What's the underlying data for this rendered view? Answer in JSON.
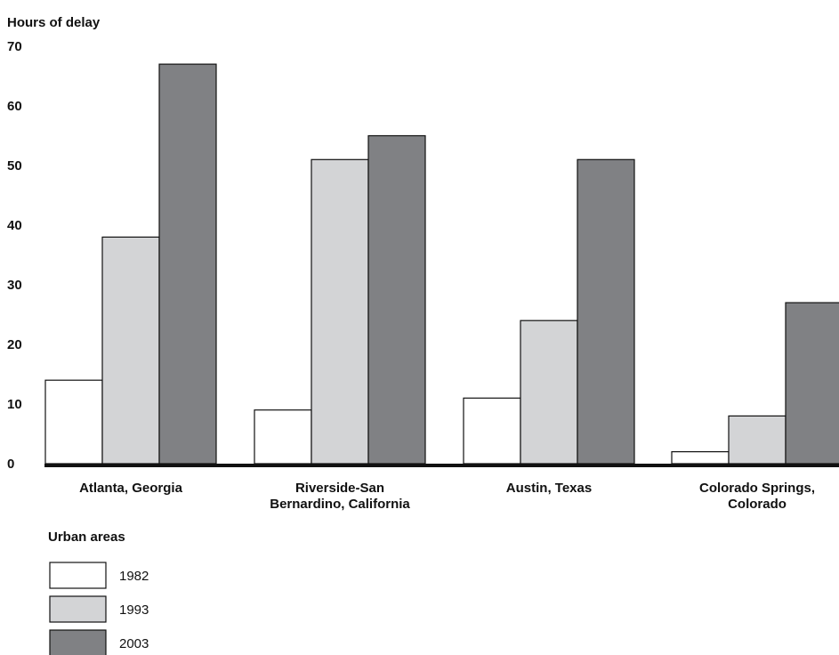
{
  "chart_data": {
    "type": "bar",
    "ylabel": "Hours of delay",
    "xlabel": "Urban areas",
    "ylim": [
      0,
      70
    ],
    "yticks": [
      0,
      10,
      20,
      30,
      40,
      50,
      60,
      70
    ],
    "grid": false,
    "legend_placement": "bottom-left",
    "categories": [
      [
        "Atlanta, Georgia"
      ],
      [
        "Riverside-San",
        "Bernardino, California"
      ],
      [
        "Austin, Texas"
      ],
      [
        "Colorado Springs,",
        "Colorado"
      ]
    ],
    "series": [
      {
        "name": "1982",
        "color": "#ffffff",
        "values": [
          14,
          9,
          11,
          2
        ]
      },
      {
        "name": "1993",
        "color": "#d3d4d6",
        "values": [
          38,
          51,
          24,
          8
        ]
      },
      {
        "name": "2003",
        "color": "#808184",
        "values": [
          67,
          55,
          51,
          27
        ]
      }
    ]
  }
}
